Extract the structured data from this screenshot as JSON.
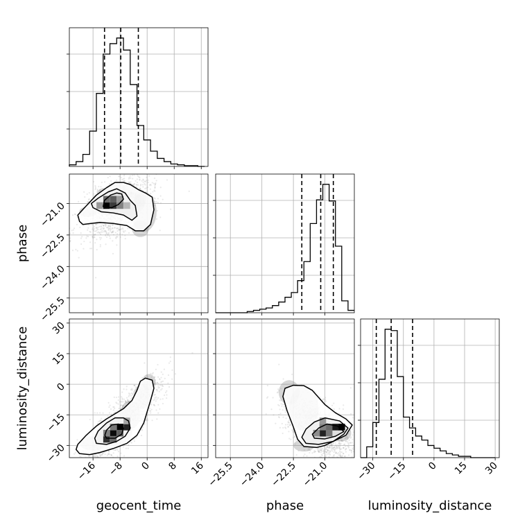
{
  "chart_data": {
    "type": "corner",
    "parameters": [
      "geocent_time",
      "phase",
      "luminosity_distance"
    ],
    "axis_ranges": {
      "geocent_time": [
        -23,
        18
      ],
      "phase": [
        -26.2,
        -19.6
      ],
      "luminosity_distance": [
        -36,
        32
      ]
    },
    "ticks": {
      "geocent_time": {
        "values": [
          -16,
          -8,
          0,
          8,
          16
        ],
        "labels": [
          "−16",
          "−8",
          "0",
          "8",
          "16"
        ]
      },
      "phase": {
        "values": [
          -25.5,
          -24.0,
          -22.5,
          -21.0
        ],
        "labels": [
          "−25.5",
          "−24.0",
          "−22.5",
          "−21.0"
        ]
      },
      "luminosity_distance": {
        "values": [
          -30,
          -15,
          0,
          15,
          30
        ],
        "labels": [
          "−30",
          "−15",
          "0",
          "15",
          "30"
        ]
      }
    },
    "grid": true,
    "histogram_color": "#000000",
    "scatter_color": "#9a9a9a",
    "marginals": [
      {
        "parameter": "geocent_time",
        "bin_edges": [
          -23,
          -21,
          -19,
          -17,
          -15,
          -13,
          -11,
          -9,
          -7,
          -5,
          -3,
          -1,
          1,
          3,
          5,
          7,
          9,
          11,
          13,
          15,
          17
        ],
        "counts": [
          2,
          6,
          15,
          44,
          91,
          140,
          153,
          160,
          145,
          102,
          51,
          33,
          19,
          10,
          6,
          3,
          2,
          1,
          1,
          0
        ],
        "quantiles": [
          -12.6,
          -7.8,
          -2.6
        ]
      },
      {
        "parameter": "phase",
        "bin_edges": [
          -26.2,
          -25.9,
          -25.6,
          -25.3,
          -25.0,
          -24.7,
          -24.4,
          -24.1,
          -23.8,
          -23.5,
          -23.2,
          -22.9,
          -22.6,
          -22.3,
          -22.0,
          -21.7,
          -21.4,
          -21.1,
          -20.8,
          -20.5,
          -20.2,
          -19.9,
          -19.6
        ],
        "counts": [
          0,
          0,
          0,
          0,
          0,
          1,
          2,
          3,
          4,
          6,
          9,
          13,
          17,
          27,
          43,
          75,
          95,
          108,
          94,
          56,
          10,
          2
        ],
        "quantiles": [
          -22.1,
          -21.2,
          -20.6
        ]
      },
      {
        "parameter": "luminosity_distance",
        "bin_edges": [
          -36,
          -33,
          -30,
          -27,
          -24,
          -21,
          -18,
          -15,
          -12,
          -9,
          -6,
          -3,
          0,
          3,
          6,
          9,
          12,
          15,
          18,
          21,
          24,
          27,
          30
        ],
        "counts": [
          0,
          8,
          26,
          58,
          95,
          94,
          60,
          30,
          22,
          16,
          13,
          9,
          7,
          5,
          3,
          2,
          1,
          1,
          0,
          0,
          0,
          0
        ],
        "quantiles": [
          -28.3,
          -21.0,
          -10.5
        ]
      }
    ],
    "joint": [
      {
        "x": "geocent_time",
        "y": "phase",
        "mean": [
          -9,
          -21.2
        ],
        "std": [
          5,
          0.7
        ],
        "corr": 0.45,
        "blobs": [
          {
            "x": -17.5,
            "y": -21.4,
            "rx": 2.6,
            "ry": 0.25
          },
          {
            "x": -11.5,
            "y": -21.0,
            "rx": 5.0,
            "ry": 0.55
          },
          {
            "x": -5.5,
            "y": -21.0,
            "rx": 4.8,
            "ry": 0.55
          },
          {
            "x": -1.0,
            "y": -21.4,
            "rx": 3.8,
            "ry": 0.95
          },
          {
            "x": -12.8,
            "y": -20.55,
            "rx": 2.0,
            "ry": 0.28
          },
          {
            "x": -9.0,
            "y": -20.35,
            "rx": 2.8,
            "ry": 0.35
          },
          {
            "x": -5.5,
            "y": -20.35,
            "rx": 2.2,
            "ry": 0.32
          },
          {
            "x": -2.0,
            "y": -20.75,
            "rx": 1.8,
            "ry": 0.4
          },
          {
            "x": -2.0,
            "y": -22.2,
            "rx": 2.5,
            "ry": 0.4
          }
        ],
        "contours": [
          [
            [
              -20,
              -21.85
            ],
            [
              -19,
              -22.0
            ],
            [
              -14,
              -21.9
            ],
            [
              -10,
              -21.95
            ],
            [
              -6,
              -22.05
            ],
            [
              -3.5,
              -22.3
            ],
            [
              -1,
              -22.3
            ],
            [
              1,
              -22.0
            ],
            [
              2,
              -21.3
            ],
            [
              1.5,
              -20.7
            ],
            [
              -0.5,
              -20.5
            ],
            [
              -2.5,
              -20.35
            ],
            [
              -5,
              -20.1
            ],
            [
              -7,
              -20.0
            ],
            [
              -9.5,
              -20.0
            ],
            [
              -12,
              -20.25
            ],
            [
              -15,
              -20.6
            ],
            [
              -18.5,
              -21.2
            ],
            [
              -20.5,
              -21.55
            ]
          ],
          [
            [
              -16,
              -21.2
            ],
            [
              -13.5,
              -21.4
            ],
            [
              -10,
              -21.45
            ],
            [
              -7,
              -21.55
            ],
            [
              -4.5,
              -21.8
            ],
            [
              -3,
              -21.6
            ],
            [
              -3.5,
              -21.1
            ],
            [
              -5,
              -20.85
            ],
            [
              -6.5,
              -20.5
            ],
            [
              -9,
              -20.3
            ],
            [
              -11.5,
              -20.45
            ],
            [
              -14.5,
              -20.75
            ],
            [
              -16.5,
              -21.0
            ]
          ],
          [
            [
              -13,
              -21.15
            ],
            [
              -10.5,
              -21.2
            ],
            [
              -8.5,
              -21.05
            ],
            [
              -7,
              -20.8
            ],
            [
              -7.5,
              -20.55
            ],
            [
              -9,
              -20.5
            ],
            [
              -10.8,
              -20.6
            ],
            [
              -12.6,
              -20.85
            ]
          ]
        ],
        "density_cells": [
          {
            "x": -12,
            "y": -21.1,
            "level": 1.0
          },
          {
            "x": -10,
            "y": -21.1,
            "level": 0.75
          },
          {
            "x": -8,
            "y": -21.1,
            "level": 0.45
          },
          {
            "x": -12,
            "y": -20.8,
            "level": 0.55
          },
          {
            "x": -10,
            "y": -20.8,
            "level": 0.6
          },
          {
            "x": -8,
            "y": -20.8,
            "level": 0.35
          },
          {
            "x": -14,
            "y": -21.1,
            "level": 0.35
          },
          {
            "x": -6,
            "y": -21.1,
            "level": 0.22
          }
        ]
      },
      {
        "x": "geocent_time",
        "y": "luminosity_distance",
        "mean": [
          -8,
          -20
        ],
        "std": [
          6,
          11
        ],
        "corr": 0.85,
        "blobs": [
          {
            "x": -16.0,
            "y": -29.0,
            "rx": 4.0,
            "ry": 3.5
          },
          {
            "x": -9.5,
            "y": -24.0,
            "rx": 5.0,
            "ry": 6.0
          },
          {
            "x": -5.0,
            "y": -15.0,
            "rx": 3.0,
            "ry": 7.0
          },
          {
            "x": -1.5,
            "y": -6.0,
            "rx": 2.5,
            "ry": 6.0
          },
          {
            "x": 0.5,
            "y": 1.0,
            "rx": 2.0,
            "ry": 4.0
          }
        ],
        "contours": [
          [
            [
              -20,
              -34
            ],
            [
              -17,
              -34.5
            ],
            [
              -14,
              -33.5
            ],
            [
              -10,
              -31.5
            ],
            [
              -6,
              -29
            ],
            [
              -3,
              -25
            ],
            [
              -1,
              -19
            ],
            [
              1,
              -8
            ],
            [
              2,
              -2
            ],
            [
              1.5,
              2
            ],
            [
              -0.5,
              3
            ],
            [
              -2,
              1.5
            ],
            [
              -3,
              -3
            ],
            [
              -4.5,
              -8
            ],
            [
              -7,
              -12
            ],
            [
              -9.5,
              -14.5
            ],
            [
              -12,
              -17
            ],
            [
              -15,
              -20.5
            ],
            [
              -18,
              -25
            ],
            [
              -20.5,
              -29.5
            ],
            [
              -21,
              -32
            ]
          ],
          [
            [
              -15,
              -29
            ],
            [
              -12,
              -29.5
            ],
            [
              -9,
              -28
            ],
            [
              -6.5,
              -25.5
            ],
            [
              -5,
              -21.5
            ],
            [
              -5.5,
              -18
            ],
            [
              -7,
              -16.5
            ],
            [
              -9.5,
              -16.5
            ],
            [
              -12,
              -19
            ],
            [
              -14.5,
              -23
            ],
            [
              -15.5,
              -26.5
            ]
          ],
          [
            [
              -12,
              -26.5
            ],
            [
              -9.5,
              -26.5
            ],
            [
              -7.5,
              -24.5
            ],
            [
              -7,
              -21.5
            ],
            [
              -8.5,
              -19.5
            ],
            [
              -10.5,
              -20
            ],
            [
              -12,
              -22.5
            ],
            [
              -12.5,
              -25
            ]
          ]
        ],
        "density_cells": [
          {
            "x": -10,
            "y": -24,
            "level": 0.95
          },
          {
            "x": -8,
            "y": -21,
            "level": 1.0
          },
          {
            "x": -6,
            "y": -21,
            "level": 0.85
          },
          {
            "x": -12,
            "y": -27,
            "level": 0.8
          },
          {
            "x": -10,
            "y": -27,
            "level": 0.55
          },
          {
            "x": -8,
            "y": -24,
            "level": 0.6
          },
          {
            "x": -10,
            "y": -21,
            "level": 0.5
          },
          {
            "x": -12,
            "y": -24,
            "level": 0.45
          },
          {
            "x": -6,
            "y": -18,
            "level": 0.3
          }
        ]
      },
      {
        "x": "phase",
        "y": "luminosity_distance",
        "mean": [
          -21.3,
          -22
        ],
        "std": [
          0.8,
          8
        ],
        "corr": -0.55,
        "blobs": [
          {
            "x": -22.0,
            "y": -12.0,
            "rx": 0.7,
            "ry": 11.0
          },
          {
            "x": -21.0,
            "y": -22.0,
            "rx": 0.75,
            "ry": 5.5
          },
          {
            "x": -20.2,
            "y": -24.0,
            "rx": 0.45,
            "ry": 4.0
          },
          {
            "x": -22.7,
            "y": -4.0,
            "rx": 0.5,
            "ry": 6.0
          },
          {
            "x": -22.0,
            "y": -30.0,
            "rx": 0.5,
            "ry": 3.0
          }
        ],
        "contours": [
          [
            [
              -22.5,
              -0.5
            ],
            [
              -22.0,
              -0.7
            ],
            [
              -21.6,
              -3
            ],
            [
              -21.0,
              -10
            ],
            [
              -20.5,
              -14
            ],
            [
              -20.0,
              -17
            ],
            [
              -19.7,
              -20
            ],
            [
              -20.0,
              -25
            ],
            [
              -20.6,
              -28
            ],
            [
              -21.0,
              -30
            ],
            [
              -21.4,
              -31
            ],
            [
              -22.0,
              -30.5
            ],
            [
              -22.3,
              -27
            ],
            [
              -22.5,
              -21
            ],
            [
              -22.8,
              -13
            ],
            [
              -23.0,
              -6
            ],
            [
              -22.9,
              -2
            ]
          ],
          [
            [
              -21.9,
              -29
            ],
            [
              -21.3,
              -29.5
            ],
            [
              -20.6,
              -28
            ],
            [
              -20.1,
              -24.5
            ],
            [
              -19.9,
              -21.5
            ],
            [
              -20.3,
              -18
            ],
            [
              -21.0,
              -16.5
            ],
            [
              -21.5,
              -18.5
            ],
            [
              -21.9,
              -22
            ],
            [
              -22.1,
              -26
            ]
          ],
          [
            [
              -21.5,
              -26.5
            ],
            [
              -21.0,
              -26.8
            ],
            [
              -20.5,
              -25.5
            ],
            [
              -20.1,
              -23.2
            ],
            [
              -20.4,
              -20.5
            ],
            [
              -20.9,
              -19.5
            ],
            [
              -21.3,
              -21.5
            ],
            [
              -21.6,
              -24.5
            ]
          ]
        ],
        "density_cells": [
          {
            "x": -20.2,
            "y": -21,
            "level": 1.0
          },
          {
            "x": -20.5,
            "y": -21,
            "level": 0.9
          },
          {
            "x": -20.8,
            "y": -21,
            "level": 0.55
          },
          {
            "x": -21.1,
            "y": -24,
            "level": 0.85
          },
          {
            "x": -21.1,
            "y": -21,
            "level": 0.45
          },
          {
            "x": -20.8,
            "y": -24,
            "level": 0.5
          },
          {
            "x": -21.4,
            "y": -24,
            "level": 0.4
          },
          {
            "x": -21.1,
            "y": -18,
            "level": 0.35
          }
        ]
      }
    ]
  }
}
